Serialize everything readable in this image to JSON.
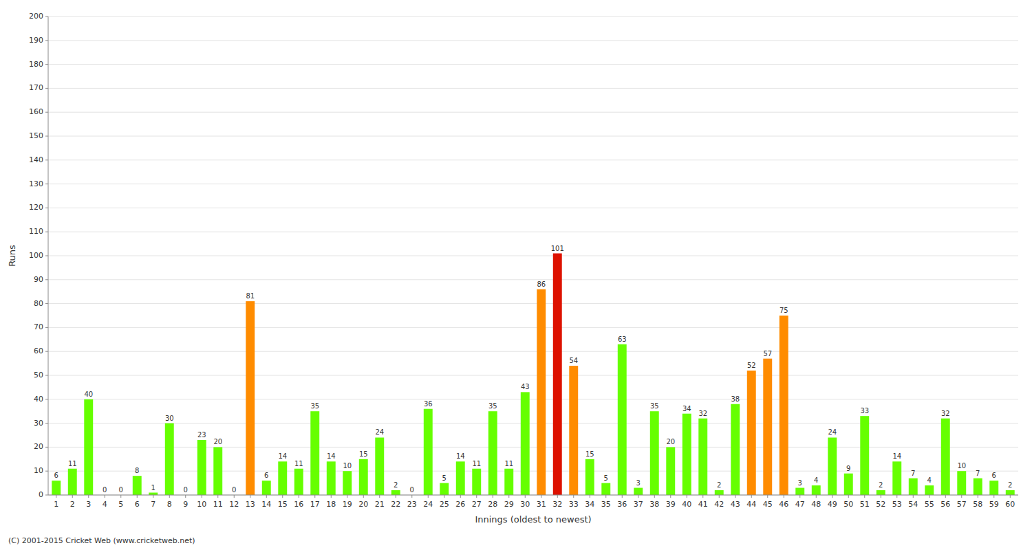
{
  "chart_data": {
    "type": "bar",
    "xlabel": "Innings (oldest to newest)",
    "ylabel": "Runs",
    "footer": "(C) 2001-2015 Cricket Web (www.cricketweb.net)",
    "categories": [
      1,
      2,
      3,
      4,
      5,
      6,
      7,
      8,
      9,
      10,
      11,
      12,
      13,
      14,
      15,
      16,
      17,
      18,
      19,
      20,
      21,
      22,
      23,
      24,
      25,
      26,
      27,
      28,
      29,
      30,
      31,
      32,
      33,
      34,
      35,
      36,
      37,
      38,
      39,
      40,
      41,
      42,
      43,
      44,
      45,
      46,
      47,
      48,
      49,
      50,
      51,
      52,
      53,
      54,
      55,
      56,
      57,
      58,
      59,
      60
    ],
    "values": [
      6,
      11,
      40,
      0,
      0,
      8,
      1,
      30,
      0,
      23,
      20,
      0,
      81,
      6,
      14,
      11,
      35,
      14,
      10,
      15,
      24,
      2,
      0,
      36,
      5,
      14,
      11,
      35,
      11,
      43,
      86,
      101,
      54,
      15,
      5,
      63,
      3,
      35,
      20,
      34,
      32,
      2,
      38,
      52,
      57,
      75,
      3,
      4,
      24,
      9,
      33,
      2,
      14,
      7,
      4,
      32,
      10,
      7,
      6,
      2
    ],
    "colors": [
      "#66ff00",
      "#66ff00",
      "#66ff00",
      "#66ff00",
      "#66ff00",
      "#66ff00",
      "#66ff00",
      "#66ff00",
      "#66ff00",
      "#66ff00",
      "#66ff00",
      "#66ff00",
      "#ff8c00",
      "#66ff00",
      "#66ff00",
      "#66ff00",
      "#66ff00",
      "#66ff00",
      "#66ff00",
      "#66ff00",
      "#66ff00",
      "#66ff00",
      "#66ff00",
      "#66ff00",
      "#66ff00",
      "#66ff00",
      "#66ff00",
      "#66ff00",
      "#66ff00",
      "#66ff00",
      "#ff8c00",
      "#dd1100",
      "#ff8c00",
      "#66ff00",
      "#66ff00",
      "#66ff00",
      "#66ff00",
      "#66ff00",
      "#66ff00",
      "#66ff00",
      "#66ff00",
      "#66ff00",
      "#66ff00",
      "#ff8c00",
      "#ff8c00",
      "#ff8c00",
      "#66ff00",
      "#66ff00",
      "#66ff00",
      "#66ff00",
      "#66ff00",
      "#66ff00",
      "#66ff00",
      "#66ff00",
      "#66ff00",
      "#66ff00",
      "#66ff00",
      "#66ff00",
      "#66ff00",
      "#66ff00"
    ],
    "ylim": [
      0,
      200
    ],
    "yticks": [
      0,
      10,
      20,
      30,
      40,
      50,
      60,
      70,
      80,
      90,
      100,
      110,
      120,
      130,
      140,
      150,
      160,
      170,
      180,
      190,
      200
    ],
    "grid": true,
    "data_labels": true
  }
}
